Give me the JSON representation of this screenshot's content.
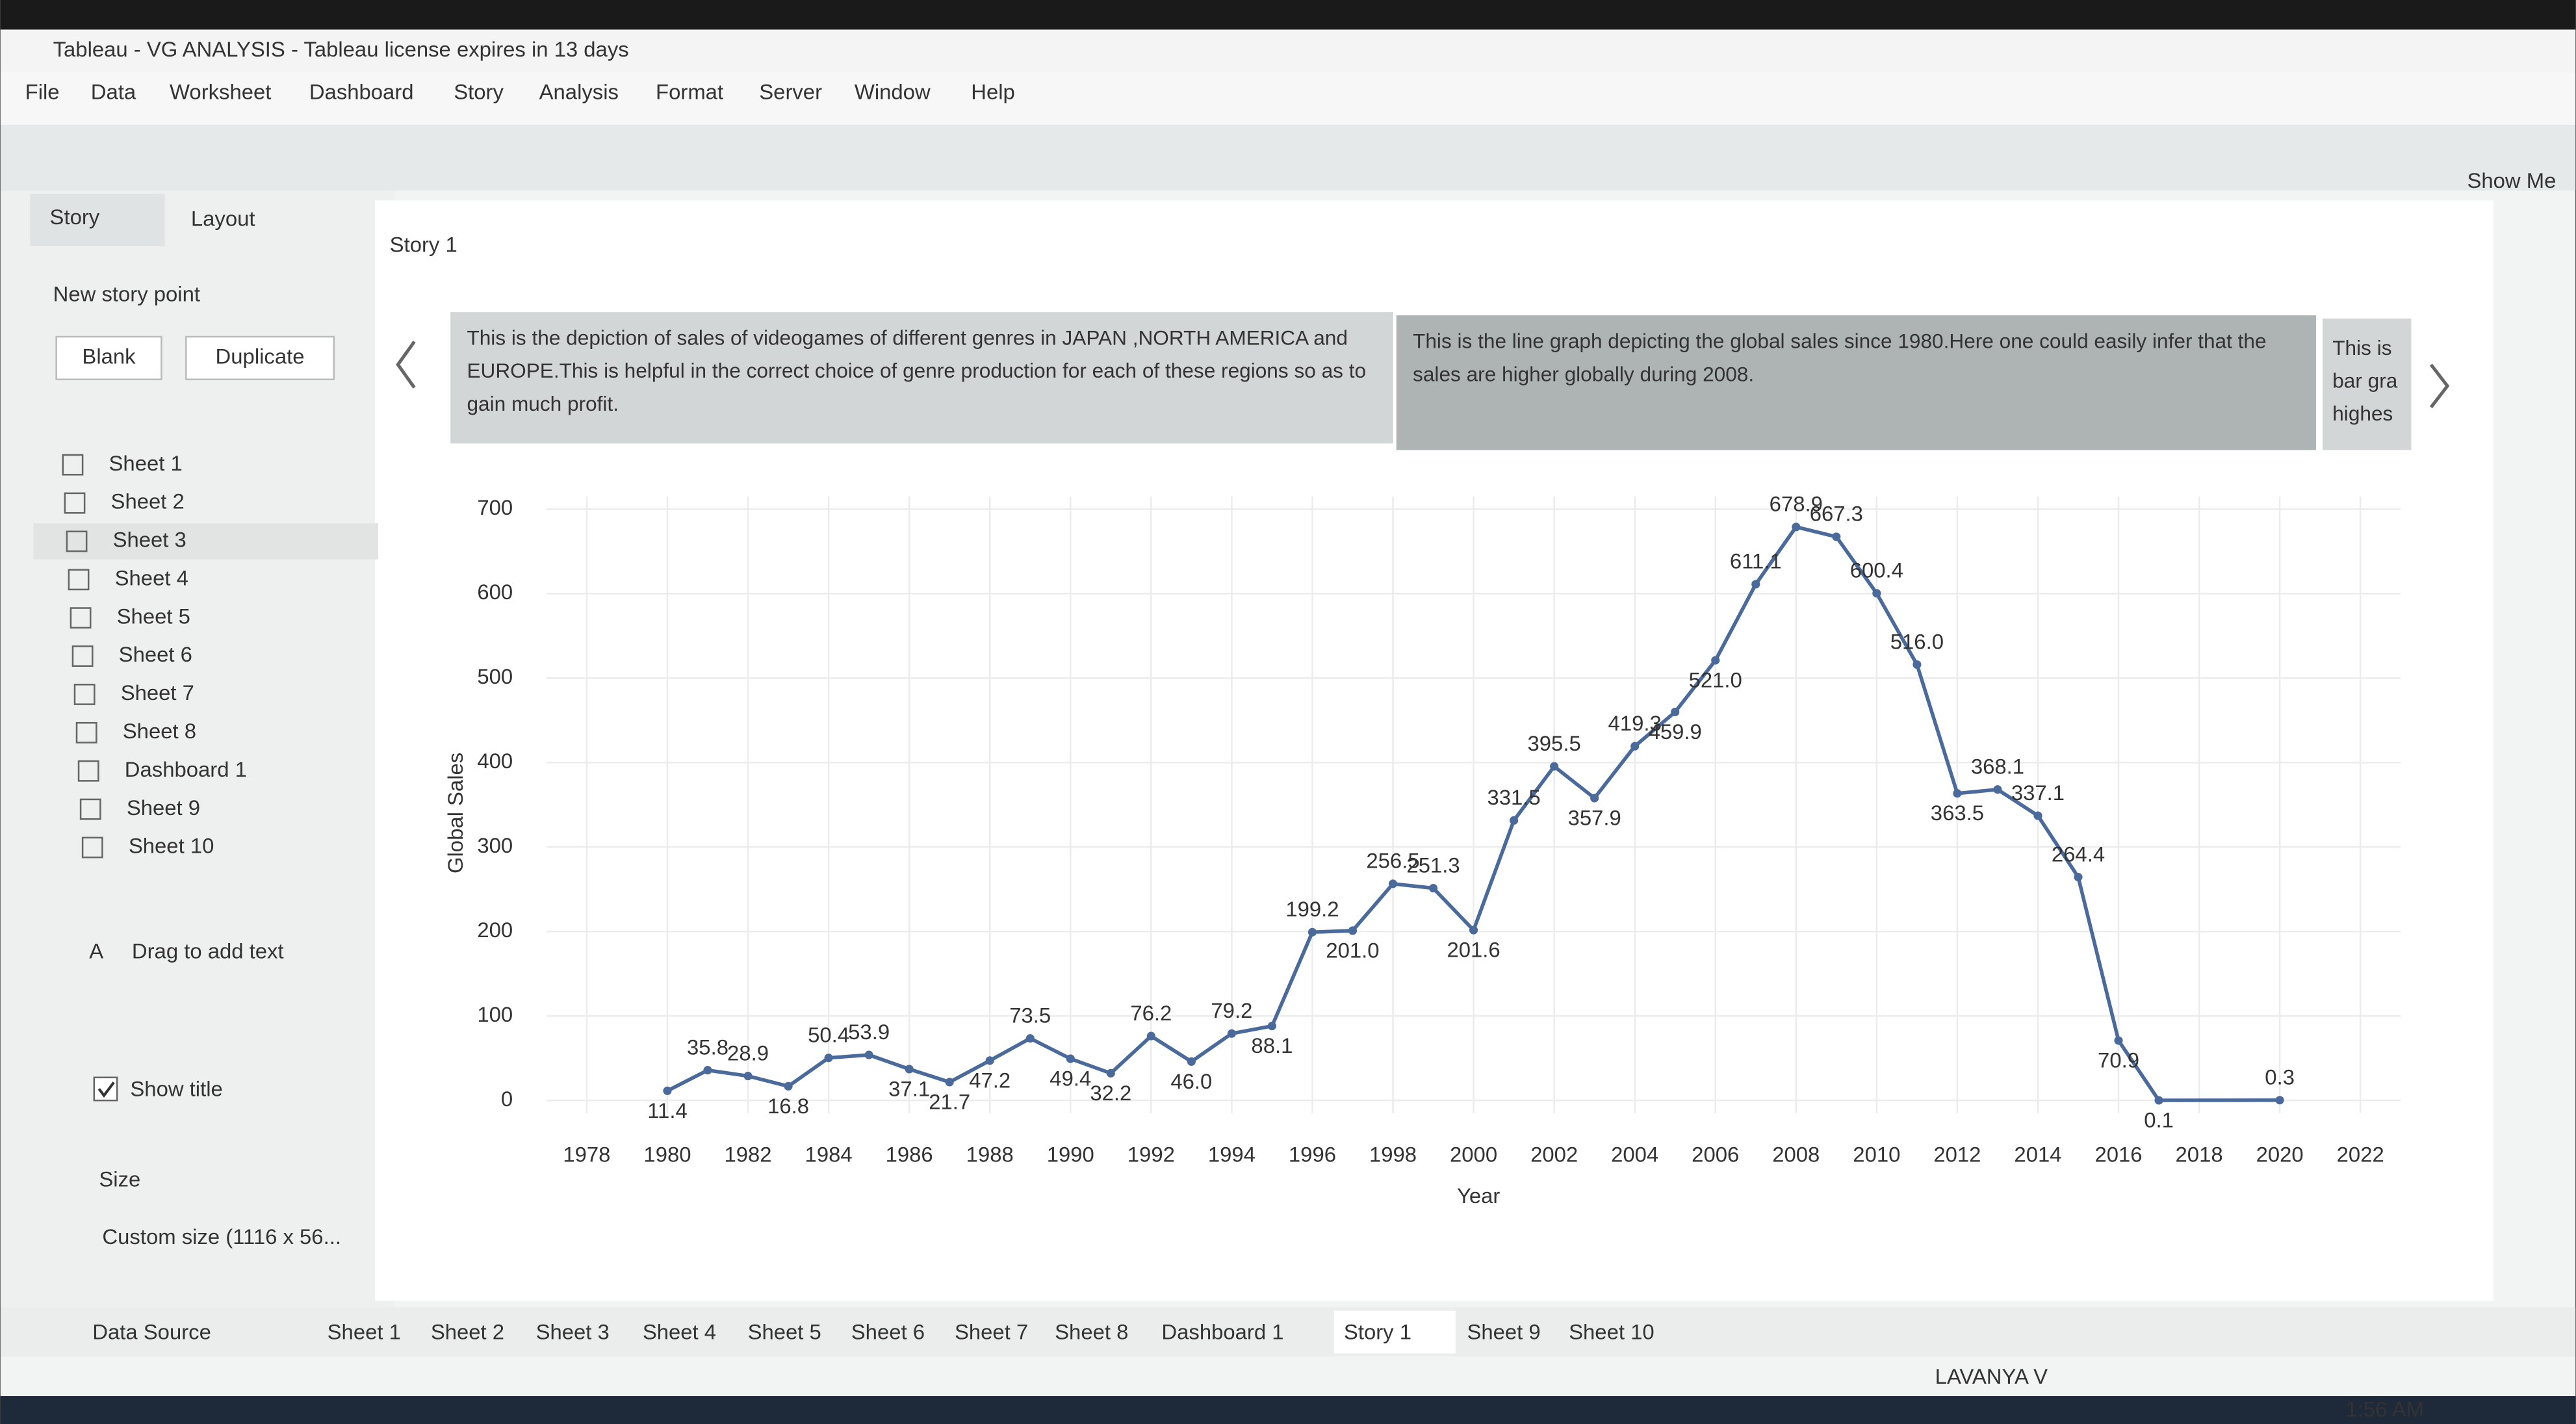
{
  "window": {
    "title": "Tableau - VG ANALYSIS - Tableau license expires in 13 days"
  },
  "menu": [
    "File",
    "Data",
    "Worksheet",
    "Dashboard",
    "Story",
    "Analysis",
    "Format",
    "Server",
    "Window",
    "Help"
  ],
  "toolbar": {
    "show_me": "Show Me"
  },
  "sidebar": {
    "tabs": [
      "Story",
      "Layout"
    ],
    "new_story_point": "New story point",
    "buttons": [
      "Blank",
      "Duplicate"
    ],
    "sheets": [
      "Sheet 1",
      "Sheet 2",
      "Sheet 3",
      "Sheet 4",
      "Sheet 5",
      "Sheet 6",
      "Sheet 7",
      "Sheet 8",
      "Dashboard 1",
      "Sheet 9",
      "Sheet 10"
    ],
    "drag_text": "Drag to add text",
    "show_title": "Show title",
    "size": "Size",
    "size_value": "Custom size (1116 x 56..."
  },
  "story": {
    "title": "Story 1",
    "points": [
      "This is the depiction of sales of videogames of different genres in JAPAN ,NORTH AMERICA and EUROPE.This is helpful in the correct choice of genre production for each of these regions so as to gain much profit.",
      "This is the line graph depicting the global sales since  1980.Here one could easily infer that the sales  are higher globally during 2008.",
      "This is bar gra highes"
    ]
  },
  "chart_data": {
    "type": "line",
    "x_label": "Year",
    "y_label": "Global Sales",
    "x": [
      1980,
      1981,
      1982,
      1983,
      1984,
      1985,
      1986,
      1987,
      1988,
      1989,
      1990,
      1991,
      1992,
      1993,
      1994,
      1995,
      1996,
      1997,
      1998,
      1999,
      2000,
      2001,
      2002,
      2003,
      2004,
      2005,
      2006,
      2007,
      2008,
      2009,
      2010,
      2011,
      2012,
      2013,
      2014,
      2015,
      2016,
      2017,
      2020
    ],
    "series": [
      {
        "name": "Global Sales",
        "color": "#4a6a9c",
        "values": [
          11.4,
          35.8,
          28.9,
          16.8,
          50.4,
          53.9,
          37.1,
          21.7,
          47.2,
          73.5,
          49.4,
          32.2,
          76.2,
          46.0,
          79.2,
          88.1,
          199.2,
          201.0,
          256.5,
          251.3,
          201.6,
          331.5,
          395.5,
          357.9,
          419.3,
          459.9,
          521.0,
          611.1,
          678.9,
          667.3,
          600.4,
          516.0,
          363.5,
          368.1,
          337.1,
          264.4,
          70.9,
          0.1,
          0.3
        ],
        "value_labels": [
          "11.4",
          "35.8",
          "28.9",
          "16.8",
          "50.4",
          "53.9",
          "37.1",
          "21.7",
          "47.2",
          "73.5",
          "49.4",
          "32.2",
          "76.2",
          "46.0",
          "79.2",
          "88.1",
          "199.2",
          "201.0",
          "256.5",
          "251.3",
          "201.6",
          "331.5",
          "395.5",
          "357.9",
          "419.3",
          "459.9",
          "521.0",
          "611.1",
          "678.9",
          "667.3",
          "600.4",
          "516.0",
          "363.5",
          "368.1",
          "337.1",
          "264.4",
          "70.9",
          "0.1",
          "0.3"
        ]
      }
    ],
    "xlim": [
      1977,
      2023
    ],
    "xticks": [
      1978,
      1980,
      1982,
      1984,
      1986,
      1988,
      1990,
      1992,
      1994,
      1996,
      1998,
      2000,
      2002,
      2004,
      2006,
      2008,
      2010,
      2012,
      2014,
      2016,
      2018,
      2020,
      2022
    ],
    "ylim": [
      -15,
      715
    ],
    "yticks": [
      0,
      100,
      200,
      300,
      400,
      500,
      600,
      700
    ],
    "grid": true
  },
  "tabs": [
    "Data Source",
    "Sheet 1",
    "Sheet 2",
    "Sheet 3",
    "Sheet 4",
    "Sheet 5",
    "Sheet 6",
    "Sheet 7",
    "Sheet 8",
    "Dashboard 1",
    "Story 1",
    "Sheet 9",
    "Sheet 10"
  ],
  "status": {
    "user": "LAVANYA V",
    "time": "1:56 AM"
  }
}
